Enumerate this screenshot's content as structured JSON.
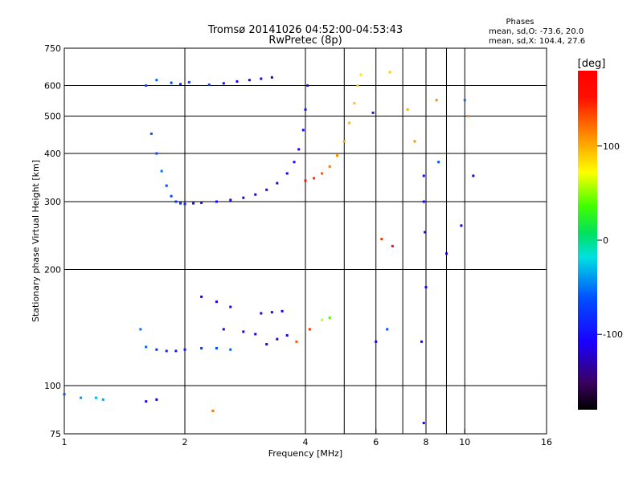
{
  "chart_data": {
    "type": "scatter",
    "title": "Tromsø 20141026 04:52:00-04:53:43",
    "subtitle": "RwPretec (8p)",
    "xlabel": "Frequency [MHz]",
    "ylabel": "Stationary phase Virtual Height [km]",
    "xscale": "log",
    "yscale": "log",
    "xlim": [
      1,
      16
    ],
    "ylim": [
      75,
      750
    ],
    "x_ticks": [
      1,
      2,
      4,
      8,
      16
    ],
    "x_minor_ticks": [
      6,
      10
    ],
    "x_minor_lines": [
      5,
      6,
      7,
      8,
      9,
      10
    ],
    "y_ticks": [
      75,
      100,
      200,
      300,
      400,
      500,
      600,
      750
    ],
    "grid": true,
    "phase_info": {
      "title": "Phases",
      "line1": "mean, sd,O: -73.6, 20.0",
      "line2": "mean, sd,X: 104.4, 27.6"
    },
    "colorbar": {
      "label": "[deg]",
      "range": [
        -180,
        180
      ],
      "ticks": [
        100,
        0,
        -100
      ]
    },
    "series": [
      {
        "x": 1.6,
        "y": 600,
        "phase": -60
      },
      {
        "x": 1.7,
        "y": 620,
        "phase": -55
      },
      {
        "x": 1.85,
        "y": 610,
        "phase": -65
      },
      {
        "x": 1.95,
        "y": 605,
        "phase": -90
      },
      {
        "x": 2.05,
        "y": 612,
        "phase": -70
      },
      {
        "x": 2.3,
        "y": 603,
        "phase": -75
      },
      {
        "x": 2.5,
        "y": 608,
        "phase": -100
      },
      {
        "x": 2.7,
        "y": 615,
        "phase": -110
      },
      {
        "x": 2.9,
        "y": 620,
        "phase": -120
      },
      {
        "x": 3.1,
        "y": 625,
        "phase": -115
      },
      {
        "x": 3.3,
        "y": 630,
        "phase": -125
      },
      {
        "x": 1.65,
        "y": 450,
        "phase": -55
      },
      {
        "x": 1.7,
        "y": 400,
        "phase": -60
      },
      {
        "x": 1.75,
        "y": 360,
        "phase": -50
      },
      {
        "x": 1.8,
        "y": 330,
        "phase": -65
      },
      {
        "x": 1.85,
        "y": 310,
        "phase": -70
      },
      {
        "x": 1.9,
        "y": 300,
        "phase": -80
      },
      {
        "x": 1.95,
        "y": 297,
        "phase": -85
      },
      {
        "x": 2.0,
        "y": 296,
        "phase": -90
      },
      {
        "x": 2.1,
        "y": 297,
        "phase": -95
      },
      {
        "x": 2.2,
        "y": 298,
        "phase": -100
      },
      {
        "x": 2.4,
        "y": 300,
        "phase": -105
      },
      {
        "x": 2.6,
        "y": 303,
        "phase": -110
      },
      {
        "x": 2.8,
        "y": 307,
        "phase": -115
      },
      {
        "x": 3.0,
        "y": 313,
        "phase": -115
      },
      {
        "x": 3.2,
        "y": 322,
        "phase": -120
      },
      {
        "x": 3.4,
        "y": 335,
        "phase": -120
      },
      {
        "x": 3.6,
        "y": 355,
        "phase": -115
      },
      {
        "x": 3.75,
        "y": 380,
        "phase": -110
      },
      {
        "x": 3.85,
        "y": 410,
        "phase": -110
      },
      {
        "x": 3.95,
        "y": 460,
        "phase": -105
      },
      {
        "x": 4.0,
        "y": 520,
        "phase": -100
      },
      {
        "x": 4.05,
        "y": 600,
        "phase": -100
      },
      {
        "x": 4.0,
        "y": 340,
        "phase": 150
      },
      {
        "x": 4.2,
        "y": 345,
        "phase": 140
      },
      {
        "x": 4.4,
        "y": 355,
        "phase": 130
      },
      {
        "x": 4.6,
        "y": 370,
        "phase": 120
      },
      {
        "x": 4.8,
        "y": 395,
        "phase": 110
      },
      {
        "x": 5.0,
        "y": 430,
        "phase": 100
      },
      {
        "x": 5.15,
        "y": 480,
        "phase": 95
      },
      {
        "x": 5.3,
        "y": 540,
        "phase": 90
      },
      {
        "x": 5.4,
        "y": 600,
        "phase": 85
      },
      {
        "x": 5.5,
        "y": 640,
        "phase": 80
      },
      {
        "x": 1.55,
        "y": 140,
        "phase": -50
      },
      {
        "x": 1.6,
        "y": 126,
        "phase": -55
      },
      {
        "x": 1.7,
        "y": 124,
        "phase": -80
      },
      {
        "x": 1.8,
        "y": 123,
        "phase": -90
      },
      {
        "x": 1.9,
        "y": 123,
        "phase": -100
      },
      {
        "x": 2.0,
        "y": 124,
        "phase": -95
      },
      {
        "x": 2.2,
        "y": 125,
        "phase": -75
      },
      {
        "x": 2.4,
        "y": 125,
        "phase": -60
      },
      {
        "x": 2.6,
        "y": 124,
        "phase": -55
      },
      {
        "x": 2.2,
        "y": 170,
        "phase": -110
      },
      {
        "x": 2.4,
        "y": 165,
        "phase": -120
      },
      {
        "x": 2.6,
        "y": 160,
        "phase": -115
      },
      {
        "x": 2.5,
        "y": 140,
        "phase": -120
      },
      {
        "x": 2.8,
        "y": 138,
        "phase": -110
      },
      {
        "x": 3.0,
        "y": 136,
        "phase": -120
      },
      {
        "x": 3.1,
        "y": 154,
        "phase": -110
      },
      {
        "x": 3.3,
        "y": 155,
        "phase": -115
      },
      {
        "x": 3.5,
        "y": 156,
        "phase": -120
      },
      {
        "x": 3.2,
        "y": 128,
        "phase": -125
      },
      {
        "x": 3.4,
        "y": 132,
        "phase": -120
      },
      {
        "x": 3.6,
        "y": 135,
        "phase": -115
      },
      {
        "x": 3.8,
        "y": 130,
        "phase": 130
      },
      {
        "x": 4.1,
        "y": 140,
        "phase": 140
      },
      {
        "x": 4.4,
        "y": 148,
        "phase": 60
      },
      {
        "x": 4.6,
        "y": 150,
        "phase": 40
      },
      {
        "x": 1.0,
        "y": 95,
        "phase": -60
      },
      {
        "x": 1.1,
        "y": 93,
        "phase": -40
      },
      {
        "x": 1.2,
        "y": 93,
        "phase": -30
      },
      {
        "x": 1.25,
        "y": 92,
        "phase": -35
      },
      {
        "x": 1.6,
        "y": 91,
        "phase": -110
      },
      {
        "x": 1.7,
        "y": 92,
        "phase": -120
      },
      {
        "x": 2.35,
        "y": 86,
        "phase": 120
      },
      {
        "x": 6.5,
        "y": 650,
        "phase": 90
      },
      {
        "x": 7.2,
        "y": 520,
        "phase": 100
      },
      {
        "x": 7.5,
        "y": 430,
        "phase": 110
      },
      {
        "x": 7.9,
        "y": 350,
        "phase": -100
      },
      {
        "x": 7.9,
        "y": 300,
        "phase": -110
      },
      {
        "x": 7.95,
        "y": 250,
        "phase": -120
      },
      {
        "x": 8.0,
        "y": 180,
        "phase": -120
      },
      {
        "x": 7.8,
        "y": 130,
        "phase": -110
      },
      {
        "x": 7.9,
        "y": 80,
        "phase": -110
      },
      {
        "x": 8.5,
        "y": 550,
        "phase": 110
      },
      {
        "x": 8.6,
        "y": 380,
        "phase": -60
      },
      {
        "x": 9.0,
        "y": 220,
        "phase": -120
      },
      {
        "x": 9.8,
        "y": 260,
        "phase": -120
      },
      {
        "x": 10.0,
        "y": 550,
        "phase": -50
      },
      {
        "x": 10.5,
        "y": 350,
        "phase": -120
      },
      {
        "x": 10.2,
        "y": 500,
        "phase": 110
      },
      {
        "x": 6.2,
        "y": 240,
        "phase": 140
      },
      {
        "x": 6.6,
        "y": 230,
        "phase": 150
      },
      {
        "x": 6.4,
        "y": 140,
        "phase": -60
      },
      {
        "x": 6.0,
        "y": 130,
        "phase": -120
      },
      {
        "x": 5.9,
        "y": 510,
        "phase": -100
      }
    ]
  }
}
